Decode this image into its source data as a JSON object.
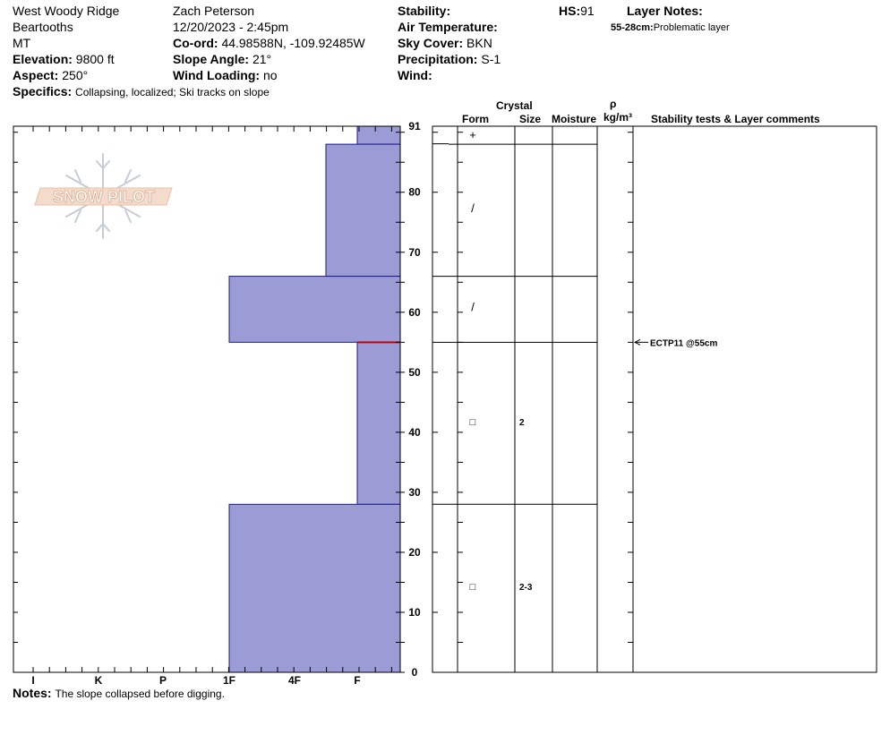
{
  "header": {
    "location": "West Woody Ridge",
    "range": "Beartooths",
    "state": "MT",
    "elevation_label": "Elevation:",
    "elevation": "9800 ft",
    "aspect_label": "Aspect:",
    "aspect": "250°",
    "specifics_label": "Specifics:",
    "specifics": "Collapsing, localized; Ski tracks on slope",
    "observer": "Zach Peterson",
    "datetime": "12/20/2023 - 2:45pm",
    "coord_label": "Co-ord:",
    "coord": "44.98588N, -109.92485W",
    "slope_label": "Slope Angle:",
    "slope": "21°",
    "wind_loading_label": "Wind Loading:",
    "wind_loading": "no",
    "stability_label": "Stability:",
    "air_temp_label": "Air Temperature:",
    "sky_label": "Sky Cover:",
    "sky": "BKN",
    "precip_label": "Precipitation:",
    "precip": "S-1",
    "wind_label": "Wind:",
    "hs_label": "HS:",
    "hs": "91",
    "layer_notes_label": "Layer Notes:",
    "layer_note_range": "55-28cm:",
    "layer_note_text": "Problematic layer"
  },
  "logo": {
    "text": "SNOW PILOT"
  },
  "table_headers": {
    "crystal": "Crystal",
    "form": "Form",
    "size": "Size",
    "moisture": "Moisture",
    "rho": "ρ",
    "density_unit": "kg/m³",
    "stability": "Stability tests & Layer comments"
  },
  "notes": {
    "label": "Notes:",
    "text": "The slope collapsed before digging."
  },
  "chart_data": {
    "type": "bar",
    "orientation": "horizontal-step",
    "y_axis": {
      "ticks": [
        0,
        10,
        20,
        30,
        40,
        50,
        60,
        70,
        80,
        91
      ],
      "ylim": [
        0,
        91
      ]
    },
    "x_axis": {
      "categories": [
        "I",
        "K",
        "P",
        "1F",
        "4F",
        "F"
      ]
    },
    "hardness_scale_right_to_left": [
      "F",
      "4F",
      "1F",
      "P",
      "K",
      "I"
    ],
    "layers": [
      {
        "bottom": 88,
        "top": 91,
        "hardness": 1,
        "form": "+",
        "size": ""
      },
      {
        "bottom": 66,
        "top": 88,
        "hardness": 1.5,
        "form": "/",
        "size": ""
      },
      {
        "bottom": 55,
        "top": 66,
        "hardness": 3,
        "form": "/",
        "size": ""
      },
      {
        "bottom": 28,
        "top": 55,
        "hardness": 1,
        "form": "□",
        "size": "2"
      },
      {
        "bottom": 0,
        "top": 28,
        "hardness": 3,
        "form": "□",
        "size": "2-3"
      }
    ],
    "test_markers": [
      {
        "depth": 55,
        "label": "ECTP11 @55cm"
      }
    ],
    "colors": {
      "bar_fill": "#9b9bd6",
      "bar_stroke": "#1a1a8c",
      "test_line": "#cc0000"
    }
  }
}
